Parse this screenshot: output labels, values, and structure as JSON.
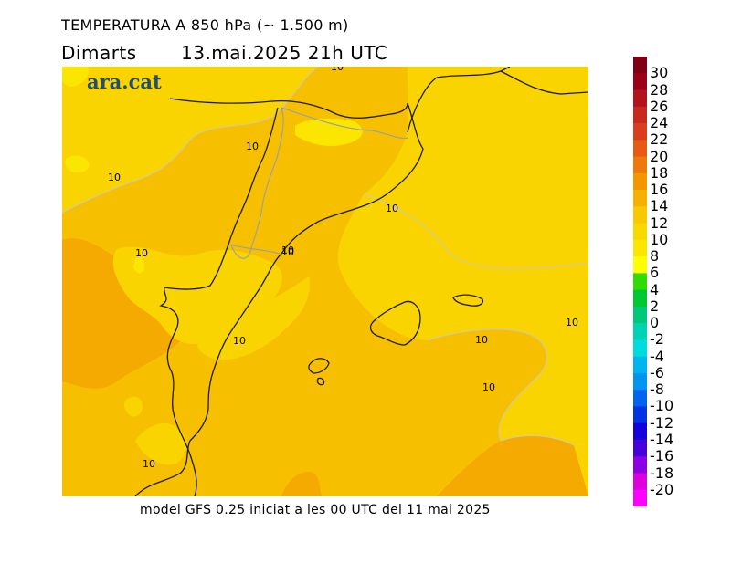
{
  "header": {
    "title": "TEMPERATURA A 850 hPa (~ 1.500 m)",
    "day": "Dimarts",
    "datetime": "13.mai.2025 21h UTC"
  },
  "brand": {
    "logo_text": "ara.cat"
  },
  "footer": {
    "model_info": "model GFS 0.25 iniciat a les 00 UTC del 11 mai 2025"
  },
  "map": {
    "contour_labels": [
      "10",
      "10",
      "10",
      "10",
      "10",
      "10",
      "10",
      "10",
      "10",
      "10",
      "10",
      "10"
    ],
    "colors": {
      "warm_yellow": "#f9d400",
      "orange_yellow": "#f6c000",
      "orange": "#f4aa00",
      "light_yellow": "#fae600",
      "coast_line": "#1a1a1a",
      "border_line": "#a0a0a0",
      "contour_line": "#c8c8c8"
    }
  },
  "colorbar": {
    "labels": [
      "30",
      "28",
      "26",
      "24",
      "22",
      "20",
      "18",
      "16",
      "14",
      "12",
      "10",
      "8",
      "6",
      "4",
      "2",
      "0",
      "-2",
      "-4",
      "-6",
      "-8",
      "-10",
      "-12",
      "-14",
      "-16",
      "-18",
      "-20"
    ],
    "colors": [
      "#7f0014",
      "#9b0018",
      "#b3141c",
      "#c8281e",
      "#dc3c1e",
      "#e85a14",
      "#ee780a",
      "#f49600",
      "#f6b000",
      "#f8c800",
      "#f9d800",
      "#fae600",
      "#ffff00",
      "#32dc00",
      "#00c832",
      "#00c878",
      "#00d2b4",
      "#00dcdc",
      "#00b4f0",
      "#0096f0",
      "#0064f0",
      "#0032e6",
      "#1400dc",
      "#4600dc",
      "#8c00e6",
      "#dc00dc",
      "#ff00ff"
    ]
  }
}
